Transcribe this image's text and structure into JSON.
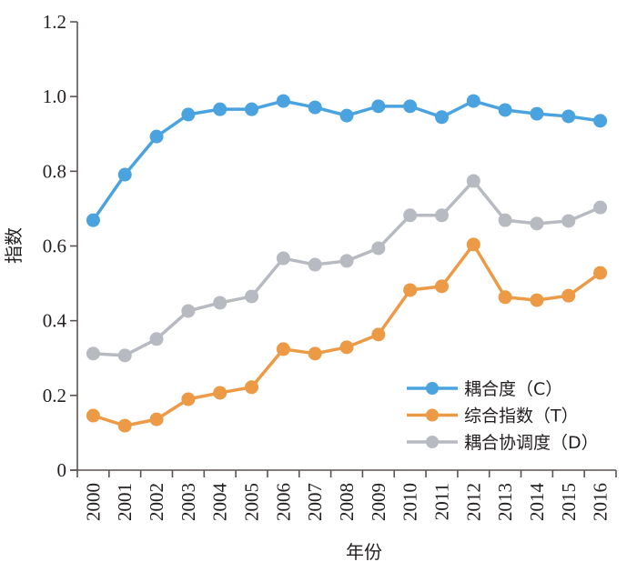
{
  "chart_data": {
    "type": "line",
    "title": "",
    "xlabel": "年份",
    "ylabel": "指数",
    "ylim": [
      0,
      1.2
    ],
    "yticks": [
      "0",
      "0.2",
      "0.4",
      "0.6",
      "0.8",
      "1.0",
      "1.2"
    ],
    "ytick_values": [
      0,
      0.2,
      0.4,
      0.6,
      0.8,
      1.0,
      1.2
    ],
    "categories": [
      "2000",
      "2001",
      "2002",
      "2003",
      "2004",
      "2005",
      "2006",
      "2007",
      "2008",
      "2009",
      "2010",
      "2011",
      "2012",
      "2013",
      "2014",
      "2015",
      "2016"
    ],
    "grid": false,
    "legend_position": "bottom-right",
    "series": [
      {
        "name": "耦合度（C）",
        "color": "#4aa3df",
        "values": [
          0.669,
          0.791,
          0.893,
          0.952,
          0.966,
          0.966,
          0.988,
          0.971,
          0.949,
          0.974,
          0.974,
          0.945,
          0.988,
          0.964,
          0.954,
          0.947,
          0.935
        ]
      },
      {
        "name": "综合指数（T）",
        "color": "#ec9a45",
        "values": [
          0.146,
          0.119,
          0.136,
          0.19,
          0.207,
          0.222,
          0.324,
          0.312,
          0.329,
          0.363,
          0.482,
          0.492,
          0.604,
          0.463,
          0.455,
          0.467,
          0.528
        ]
      },
      {
        "name": "耦合协调度（D）",
        "color": "#b7bac1",
        "values": [
          0.312,
          0.307,
          0.351,
          0.426,
          0.448,
          0.465,
          0.567,
          0.55,
          0.56,
          0.594,
          0.682,
          0.682,
          0.774,
          0.669,
          0.66,
          0.667,
          0.703
        ]
      }
    ]
  }
}
